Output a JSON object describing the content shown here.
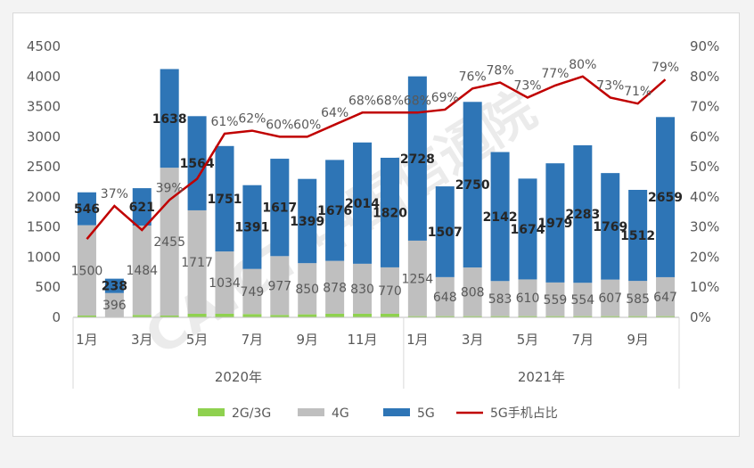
{
  "chart_data": {
    "type": "bar",
    "stacked": true,
    "categories": [
      "2020-01",
      "2020-02",
      "2020-03",
      "2020-04",
      "2020-05",
      "2020-06",
      "2020-07",
      "2020-08",
      "2020-09",
      "2020-10",
      "2020-11",
      "2020-12",
      "2021-01",
      "2021-02",
      "2021-03",
      "2021-04",
      "2021-05",
      "2021-06",
      "2021-07",
      "2021-08",
      "2021-09",
      "2021-10"
    ],
    "x_tick_labels": [
      "1月",
      "",
      "3月",
      "",
      "5月",
      "",
      "7月",
      "",
      "9月",
      "",
      "11月",
      "",
      "1月",
      "",
      "3月",
      "",
      "5月",
      "",
      "7月",
      "",
      "9月",
      ""
    ],
    "year_labels": [
      "2020年",
      "2021年"
    ],
    "series": [
      {
        "name": "2G/3G",
        "color": "#8fd14f",
        "axis": "left",
        "values": [
          30,
          8,
          40,
          30,
          60,
          60,
          55,
          40,
          50,
          60,
          60,
          60,
          20,
          20,
          20,
          20,
          20,
          20,
          20,
          20,
          20,
          20
        ]
      },
      {
        "name": "4G",
        "color": "#bfbfbf",
        "axis": "left",
        "values": [
          1500,
          396,
          1484,
          2455,
          1717,
          1034,
          749,
          977,
          850,
          878,
          830,
          770,
          1254,
          648,
          808,
          583,
          610,
          559,
          554,
          607,
          585,
          647
        ]
      },
      {
        "name": "5G",
        "color": "#2e75b6",
        "axis": "left",
        "values": [
          546,
          238,
          621,
          1638,
          1564,
          1751,
          1391,
          1617,
          1399,
          1676,
          2014,
          1820,
          2728,
          1507,
          2750,
          2142,
          1674,
          1979,
          2283,
          1769,
          1512,
          2659
        ]
      },
      {
        "name": "5G手机占比",
        "color": "#c00000",
        "type": "line",
        "axis": "right",
        "values": [
          26,
          37,
          29,
          39,
          46,
          61,
          62,
          60,
          60,
          64,
          68,
          68,
          68,
          69,
          76,
          78,
          73,
          77,
          80,
          73,
          71,
          79
        ]
      }
    ],
    "value_labels_4g": [
      "1500",
      "396",
      "1484",
      "2455",
      "1717",
      "1034",
      "749",
      "977",
      "850",
      "878",
      "830",
      "770",
      "1254",
      "648",
      "808",
      "583",
      "610",
      "559",
      "554",
      "607",
      "585",
      "647"
    ],
    "value_labels_5g": [
      "546",
      "238",
      "621",
      "1638",
      "1564",
      "1751",
      "1391",
      "1617",
      "1399",
      "1676",
      "2014",
      "1820",
      "2728",
      "1507",
      "2750",
      "2142",
      "1674",
      "1979",
      "2283",
      "1769",
      "1512",
      "2659"
    ],
    "value_labels_pct": [
      "",
      "37%",
      "",
      "39%",
      "",
      "61%",
      "62%",
      "60%",
      "60%",
      "64%",
      "68%",
      "68%",
      "68%",
      "69%",
      "76%",
      "78%",
      "73%",
      "77%",
      "80%",
      "73%",
      "71%",
      "79%"
    ],
    "y_left": {
      "min": 0,
      "max": 4500,
      "step": 500,
      "tick_labels": [
        "0",
        "500",
        "1000",
        "1500",
        "2000",
        "2500",
        "3000",
        "3500",
        "4000",
        "4500"
      ]
    },
    "y_right": {
      "min": 0,
      "max": 90,
      "step": 10,
      "tick_labels": [
        "0%",
        "10%",
        "20%",
        "30%",
        "40%",
        "50%",
        "60%",
        "70%",
        "80%",
        "90%"
      ]
    },
    "legend": {
      "placement": "bottom",
      "items": [
        "2G/3G",
        "4G",
        "5G",
        "5G手机占比"
      ]
    },
    "grid": false,
    "watermark": "CAICT 中国信通院"
  }
}
